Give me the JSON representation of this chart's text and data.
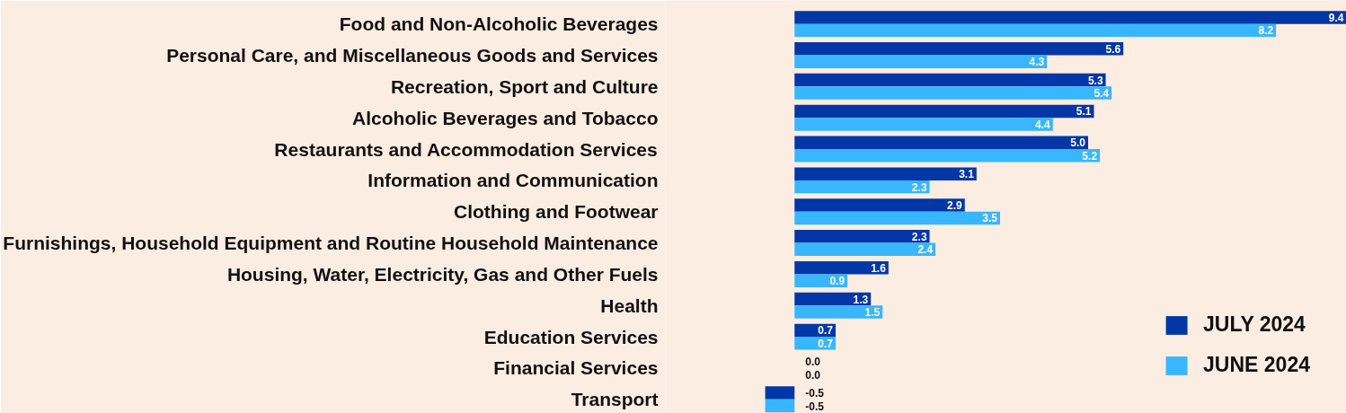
{
  "chart_data": {
    "type": "bar",
    "orientation": "horizontal",
    "categories": [
      "Food and Non-Alcoholic Beverages",
      "Personal Care, and Miscellaneous Goods and Services",
      "Recreation, Sport and Culture",
      "Alcoholic Beverages and Tobacco",
      "Restaurants and Accommodation Services",
      "Information and Communication",
      "Clothing and Footwear",
      "Furnishings, Household Equipment and Routine Household Maintenance",
      "Housing, Water, Electricity, Gas and Other Fuels",
      "Health",
      "Education Services",
      "Financial Services",
      "Transport"
    ],
    "series": [
      {
        "name": "JULY 2024",
        "color": "#0337a7",
        "values": [
          9.4,
          5.6,
          5.3,
          5.1,
          5.0,
          3.1,
          2.9,
          2.3,
          1.6,
          1.3,
          0.7,
          0.0,
          -0.5
        ],
        "value_labels": [
          "9.4",
          "5.6",
          "5.3",
          "5.1",
          "5.0",
          "3.1",
          "2.9",
          "2.3",
          "1.6",
          "1.3",
          "0.7",
          "0.0",
          "-0.5"
        ]
      },
      {
        "name": "JUNE 2024",
        "color": "#38b6ff",
        "values": [
          8.2,
          4.3,
          5.4,
          4.4,
          5.2,
          2.3,
          3.5,
          2.4,
          0.9,
          1.5,
          0.7,
          0.0,
          -0.5
        ],
        "value_labels": [
          "8.2",
          "4.3",
          "5.4",
          "4.4",
          "5.2",
          "2.3",
          "3.5",
          "2.4",
          "0.9",
          "1.5",
          "0.7",
          "0.0",
          "-0.5"
        ]
      }
    ],
    "xlim": [
      -2.2,
      9.4
    ],
    "legend": "bottom right",
    "tick_labels": "y"
  }
}
